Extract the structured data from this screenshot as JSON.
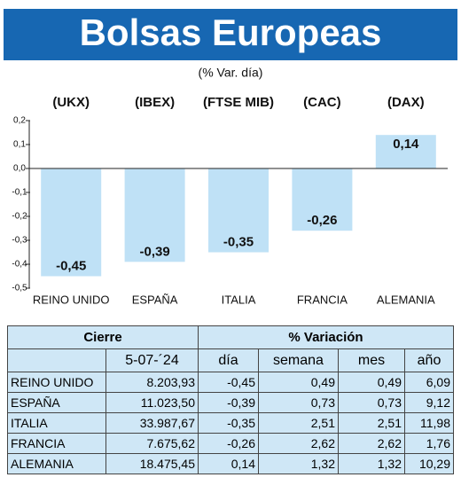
{
  "chart_data": {
    "type": "bar",
    "title": "Bolsas Europeas",
    "subtitle": "(% Var. día)",
    "tickers": [
      "(UKX)",
      "(IBEX)",
      "(FTSE MIB)",
      "(CAC)",
      "(DAX)"
    ],
    "categories": [
      "REINO UNIDO",
      "ESPAÑA",
      "ITALIA",
      "FRANCIA",
      "ALEMANIA"
    ],
    "values": [
      -0.45,
      -0.39,
      -0.35,
      -0.26,
      0.14
    ],
    "value_labels": [
      "-0,45",
      "-0,39",
      "-0,35",
      "-0,26",
      "0,14"
    ],
    "color": "#bfe1f6",
    "ylim": [
      -0.5,
      0.2
    ],
    "yticks": [
      {
        "value": 0.2,
        "label": "0,2"
      },
      {
        "value": 0.1,
        "label": "0,1"
      },
      {
        "value": 0,
        "label": "0,0"
      },
      {
        "value": -0.1,
        "label": "-0,1"
      },
      {
        "value": -0.2,
        "label": "-0,2"
      },
      {
        "value": -0.3,
        "label": "-0,3"
      },
      {
        "value": -0.4,
        "label": "-0,4"
      },
      {
        "value": -0.5,
        "label": "-0,5"
      }
    ]
  },
  "table": {
    "header": [
      "Cierre",
      "% Variación"
    ],
    "subheader": [
      "5-07-´24",
      "día",
      "semana",
      "mes",
      "año"
    ],
    "rows": [
      [
        "REINO UNIDO",
        "8.203,93",
        "-0,45",
        "0,49",
        "0,49",
        "6,09"
      ],
      [
        "ESPAÑA",
        "11.023,50",
        "-0,39",
        "0,73",
        "0,73",
        "9,12"
      ],
      [
        "ITALIA",
        "33.987,67",
        "-0,35",
        "2,51",
        "2,51",
        "11,98"
      ],
      [
        "FRANCIA",
        "7.675,62",
        "-0,26",
        "2,62",
        "2,62",
        "1,76"
      ],
      [
        "ALEMANIA",
        "18.475,45",
        "0,14",
        "1,32",
        "1,32",
        "10,29"
      ]
    ]
  }
}
